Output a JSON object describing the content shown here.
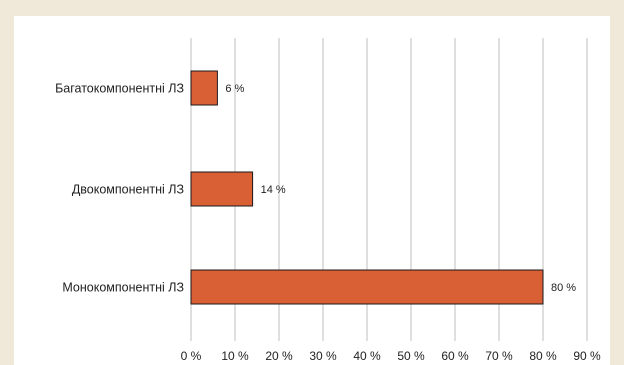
{
  "chart_data": {
    "type": "bar",
    "orientation": "horizontal",
    "title": "",
    "xlabel": "",
    "ylabel": "",
    "categories": [
      "Багатокомпонентні ЛЗ",
      "Двокомпонентні ЛЗ",
      "Монокомпонентні ЛЗ"
    ],
    "values": [
      6,
      14,
      80
    ],
    "data_labels": [
      "6 %",
      "14 %",
      "80 %"
    ],
    "xlim": [
      0,
      90
    ],
    "xticks": [
      0,
      10,
      20,
      30,
      40,
      50,
      60,
      70,
      80,
      90
    ],
    "xtick_labels": [
      "0 %",
      "10 %",
      "20 %",
      "30 %",
      "40 %",
      "50 %",
      "60 %",
      "70 %",
      "80 %",
      "90 %"
    ],
    "grid": true,
    "legend": "none",
    "bar_color": "#d95f35",
    "bar_edge_color": "#1a1a1a",
    "grid_color": "#bfbfbf",
    "background_color": "#f0e8d8"
  }
}
